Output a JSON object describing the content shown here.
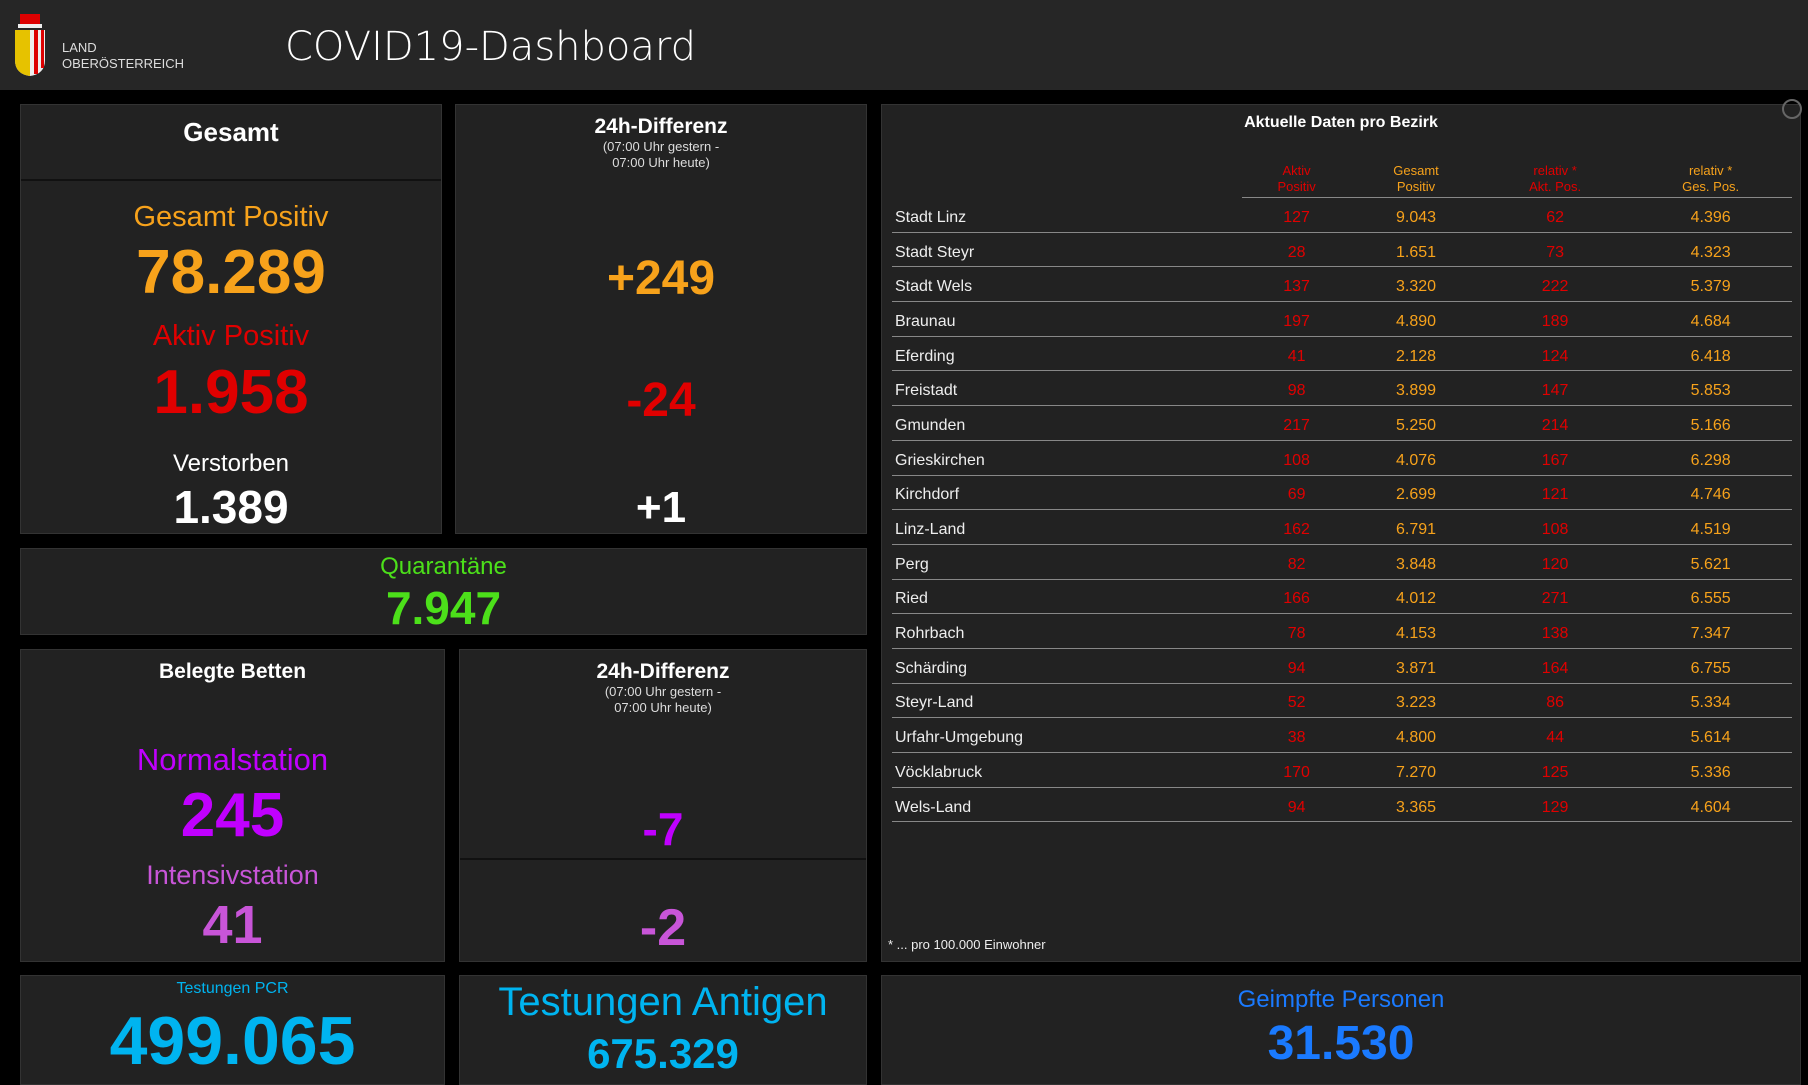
{
  "header": {
    "logo_line1": "LAND",
    "logo_line2": "OBERÖSTERREICH",
    "title": "COVID19-Dashboard"
  },
  "gesamt": {
    "title": "Gesamt",
    "positiv_label": "Gesamt Positiv",
    "positiv": "78.289",
    "aktiv_label": "Aktiv Positiv",
    "aktiv": "1.958",
    "verstorben_label": "Verstorben",
    "verstorben": "1.389"
  },
  "diff1": {
    "title": "24h-Differenz",
    "sub1": "(07:00 Uhr gestern -",
    "sub2": "07:00 Uhr heute)",
    "positiv": "+249",
    "aktiv": "-24",
    "verstorben": "+1"
  },
  "quarantaene": {
    "label": "Quarantäne",
    "value": "7.947"
  },
  "betten": {
    "title": "Belegte Betten",
    "normal_label": "Normalstation",
    "normal": "245",
    "intensiv_label": "Intensivstation",
    "intensiv": "41"
  },
  "diff2": {
    "title": "24h-Differenz",
    "sub1": "(07:00 Uhr gestern -",
    "sub2": "07:00 Uhr heute)",
    "normal": "-7",
    "intensiv": "-2"
  },
  "pcr": {
    "label": "Testungen PCR",
    "value": "499.065"
  },
  "antigen": {
    "label": "Testungen Antigen",
    "value": "675.329"
  },
  "geimpft": {
    "label": "Geimpfte Personen",
    "value": "31.530"
  },
  "bezirk": {
    "title": "Aktuelle Daten pro Bezirk",
    "footnote": "* ... pro 100.000 Einwohner",
    "columns": [
      [
        "Aktiv",
        "Positiv"
      ],
      [
        "Gesamt",
        "Positiv"
      ],
      [
        "relativ *",
        "Akt. Pos."
      ],
      [
        "relativ *",
        "Ges. Pos."
      ]
    ],
    "rows": [
      [
        "Stadt Linz",
        "127",
        "9.043",
        "62",
        "4.396"
      ],
      [
        "Stadt Steyr",
        "28",
        "1.651",
        "73",
        "4.323"
      ],
      [
        "Stadt Wels",
        "137",
        "3.320",
        "222",
        "5.379"
      ],
      [
        "Braunau",
        "197",
        "4.890",
        "189",
        "4.684"
      ],
      [
        "Eferding",
        "41",
        "2.128",
        "124",
        "6.418"
      ],
      [
        "Freistadt",
        "98",
        "3.899",
        "147",
        "5.853"
      ],
      [
        "Gmunden",
        "217",
        "5.250",
        "214",
        "5.166"
      ],
      [
        "Grieskirchen",
        "108",
        "4.076",
        "167",
        "6.298"
      ],
      [
        "Kirchdorf",
        "69",
        "2.699",
        "121",
        "4.746"
      ],
      [
        "Linz-Land",
        "162",
        "6.791",
        "108",
        "4.519"
      ],
      [
        "Perg",
        "82",
        "3.848",
        "120",
        "5.621"
      ],
      [
        "Ried",
        "166",
        "4.012",
        "271",
        "6.555"
      ],
      [
        "Rohrbach",
        "78",
        "4.153",
        "138",
        "7.347"
      ],
      [
        "Schärding",
        "94",
        "3.871",
        "164",
        "6.755"
      ],
      [
        "Steyr-Land",
        "52",
        "3.223",
        "86",
        "5.334"
      ],
      [
        "Urfahr-Umgebung",
        "38",
        "4.800",
        "44",
        "5.614"
      ],
      [
        "Vöcklabruck",
        "170",
        "7.270",
        "125",
        "5.336"
      ],
      [
        "Wels-Land",
        "94",
        "3.365",
        "129",
        "4.604"
      ]
    ]
  }
}
